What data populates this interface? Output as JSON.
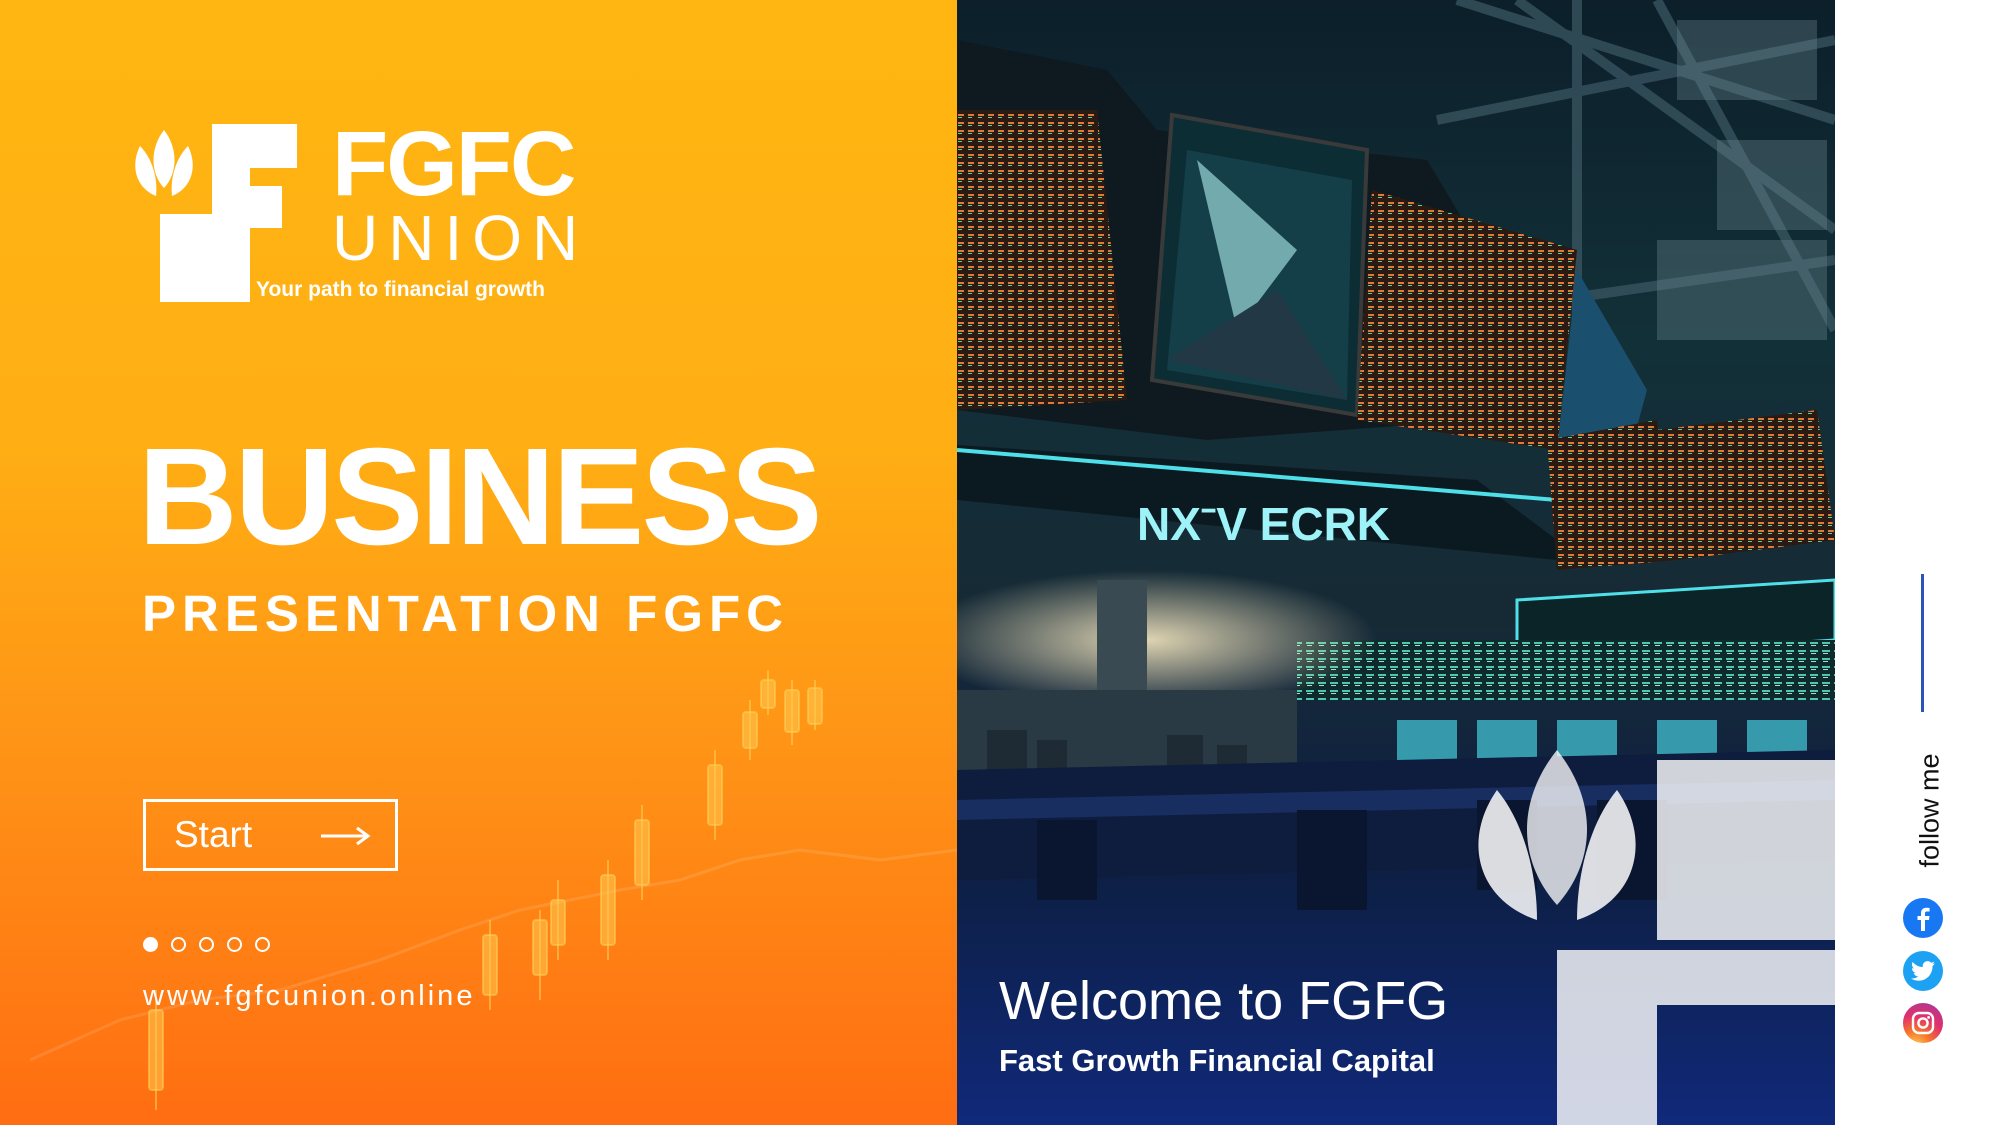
{
  "brand": {
    "name": "FGFC",
    "sub": "UNION",
    "tagline": "Your path to financial growth"
  },
  "hero": {
    "title": "BUSINESS",
    "subtitle": "PRESENTATION FGFC"
  },
  "start_button": {
    "label": "Start"
  },
  "pagination": {
    "total": 5,
    "active": 1
  },
  "website": "www.fgfcunion.online",
  "photo": {
    "sign": "NXˉV ECRK",
    "welcome": "Welcome to FGFG",
    "welcome_sub": "Fast Growth Financial Capital"
  },
  "social": {
    "follow_label": "follow me",
    "icons": [
      "facebook-icon",
      "twitter-icon",
      "instagram-icon"
    ]
  },
  "colors": {
    "orange_top": "#ffb612",
    "orange_bottom": "#ff6d12",
    "accent_blue": "#2a55b8",
    "facebook": "#1877f2",
    "twitter": "#1da1f2"
  }
}
